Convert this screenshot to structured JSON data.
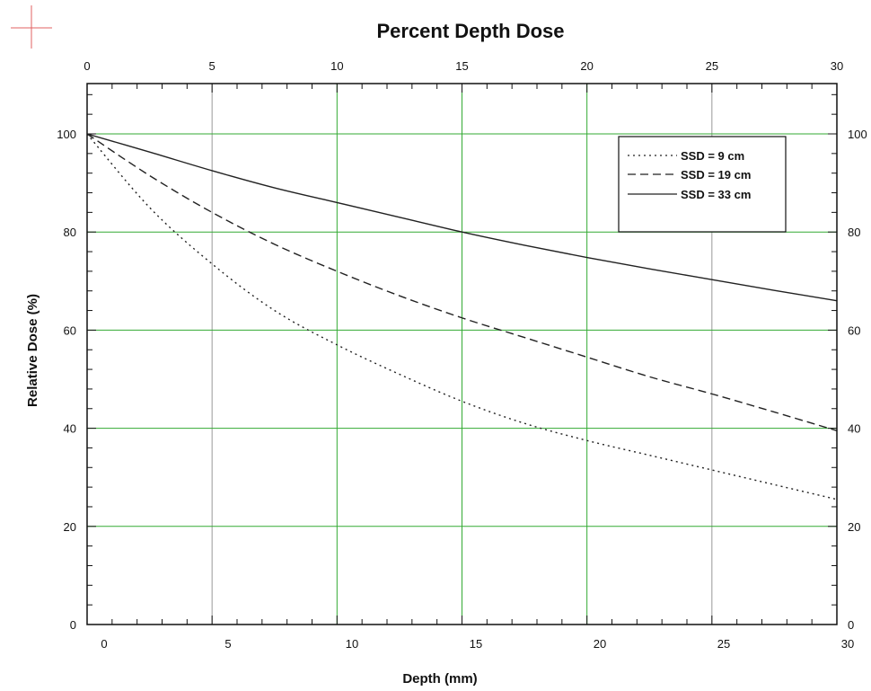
{
  "chart_data": {
    "type": "line",
    "title": "Percent Depth Dose",
    "xlabel": "Depth (mm)",
    "ylabel": "Relative Dose (%)",
    "xlim": [
      0,
      30
    ],
    "ylim": [
      0,
      110
    ],
    "x_ticks_top": [
      "0",
      "5",
      "10",
      "15",
      "20",
      "25",
      "30"
    ],
    "x_ticks_bottom": [
      "0",
      "5",
      "10",
      "15",
      "20",
      "25",
      "30"
    ],
    "y_ticks": [
      "0",
      "20",
      "40",
      "60",
      "80",
      "100"
    ],
    "grid": true,
    "legend_position": "top-right",
    "colors": {
      "grid_major": "#33aa33",
      "grid_minor": "#999999",
      "line": "#222222",
      "crosshair": "#e06060"
    },
    "x": [
      0,
      2.5,
      5,
      7.5,
      10,
      12.5,
      15,
      17.5,
      20,
      22.5,
      25,
      27.5,
      30
    ],
    "series": [
      {
        "name": "SSD = 9 cm",
        "style": "dotted",
        "values": [
          100,
          85,
          73.5,
          64,
          57,
          51,
          45.5,
          41,
          37.5,
          34.5,
          31.5,
          28.5,
          25.5
        ]
      },
      {
        "name": "SSD = 19 cm",
        "style": "dashed",
        "values": [
          100,
          91.5,
          84,
          77.5,
          72,
          67,
          62.5,
          58.5,
          54.5,
          50.5,
          47,
          43.3,
          39.5
        ]
      },
      {
        "name": "SSD = 33 cm",
        "style": "solid",
        "values": [
          100,
          96.3,
          92.5,
          89,
          86,
          83,
          80,
          77.3,
          74.8,
          72.5,
          70.3,
          68.1,
          66
        ]
      }
    ]
  }
}
